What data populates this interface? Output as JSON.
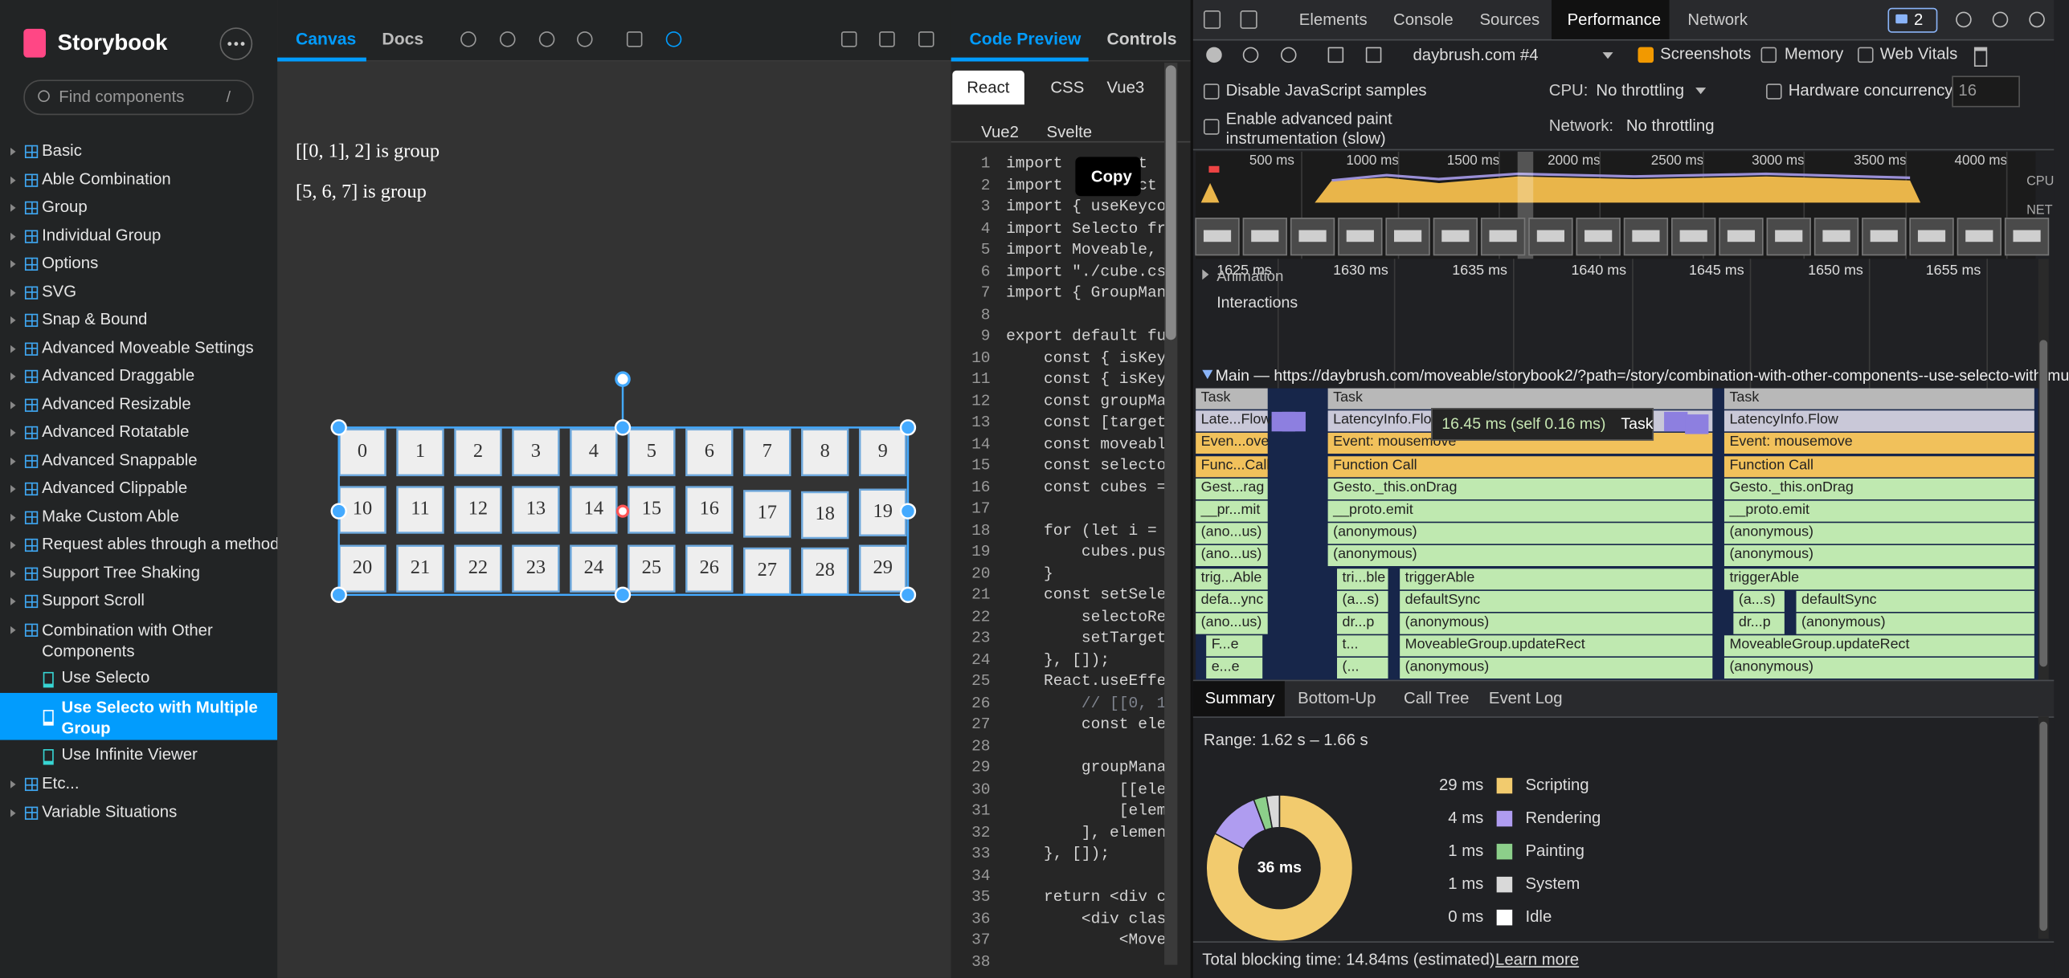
{
  "sidebar": {
    "title": "Storybook",
    "search_placeholder": "Find components",
    "search_shortcut": "/",
    "items": [
      "Basic",
      "Able Combination",
      "Group",
      "Individual Group",
      "Options",
      "SVG",
      "Snap & Bound",
      "Advanced Moveable Settings",
      "Advanced Draggable",
      "Advanced Resizable",
      "Advanced Rotatable",
      "Advanced Snappable",
      "Advanced Clippable",
      "Make Custom Able",
      "Request ables through a method",
      "Support Tree Shaking",
      "Support Scroll"
    ],
    "group": "Combination with Other Components",
    "children": [
      "Use Selecto",
      "Use Selecto with Multiple Group",
      "Use Infinite Viewer"
    ],
    "selected_child": 1,
    "items_after": [
      "Etc...",
      "Variable Situations"
    ]
  },
  "canvas": {
    "tabs": [
      "Canvas",
      "Docs"
    ],
    "active_tab": 0,
    "lines": [
      "[[0, 1], 2] is group",
      "[5, 6, 7] is group"
    ],
    "cubes": [
      0,
      1,
      2,
      3,
      4,
      5,
      6,
      7,
      8,
      9,
      10,
      11,
      12,
      13,
      14,
      15,
      16,
      17,
      18,
      19,
      20,
      21,
      22,
      23,
      24,
      25,
      26,
      27,
      28,
      29
    ]
  },
  "code": {
    "tabs": [
      "Code Preview",
      "Controls"
    ],
    "frameworks": [
      "React",
      "CSS",
      "Vue3",
      "Vue2",
      "Svelte"
    ],
    "active_framework": 0,
    "copy": "Copy",
    "lines": [
      {
        "n": 1,
        "text": "import       at"
      },
      {
        "n": 2,
        "text": "import       act"
      },
      {
        "n": 3,
        "text": "import { useKeyco"
      },
      {
        "n": 4,
        "text": "import Selecto fr"
      },
      {
        "n": 5,
        "text": "import Moveable,"
      },
      {
        "n": 6,
        "text": "import \"./cube.cs"
      },
      {
        "n": 7,
        "text": "import { GroupMan"
      },
      {
        "n": 8
      },
      {
        "n": 9,
        "text": "export default fu"
      },
      {
        "n": 10,
        "text": "    const { isKey"
      },
      {
        "n": 11,
        "text": "    const { isKey"
      },
      {
        "n": 12,
        "text": "    const groupMa"
      },
      {
        "n": 13,
        "text": "    const [target"
      },
      {
        "n": 14,
        "text": "    const moveabl"
      },
      {
        "n": 15,
        "text": "    const selecto"
      },
      {
        "n": 16,
        "text": "    const cubes ="
      },
      {
        "n": 17
      },
      {
        "n": 18,
        "text": "    for (let i ="
      },
      {
        "n": 19,
        "text": "        cubes.pus"
      },
      {
        "n": 20,
        "text": "    }"
      },
      {
        "n": 21,
        "text": "    const setSele"
      },
      {
        "n": 22,
        "text": "        selectoRe"
      },
      {
        "n": 23,
        "text": "        setTarget"
      },
      {
        "n": 24,
        "text": "    }, []);"
      },
      {
        "n": 25,
        "text": "    React.useEffe"
      },
      {
        "n": 26,
        "text": "        // [[0, 1"
      },
      {
        "n": 27,
        "text": "        const ele"
      },
      {
        "n": 28
      },
      {
        "n": 29,
        "text": "        groupMana"
      },
      {
        "n": 30,
        "text": "            [[ele"
      },
      {
        "n": 31,
        "text": "            [elem"
      },
      {
        "n": 32,
        "text": "        ], elemen"
      },
      {
        "n": 33,
        "text": "    }, []);"
      },
      {
        "n": 34
      },
      {
        "n": 35,
        "text": "    return <div c"
      },
      {
        "n": 36,
        "text": "        <div clas"
      },
      {
        "n": 37,
        "text": "            <Move"
      },
      {
        "n": 38
      }
    ]
  },
  "devtools": {
    "tabs": [
      "Elements",
      "Console",
      "Sources",
      "Performance",
      "Network"
    ],
    "active_tab": 3,
    "issues": 2,
    "profile": "daybrush.com #4",
    "checkboxes": [
      {
        "label": "Screenshots",
        "checked": true
      },
      {
        "label": "Memory",
        "checked": false
      },
      {
        "label": "Web Vitals",
        "checked": false
      },
      {
        "label": "Disable JavaScript samples",
        "checked": false
      },
      {
        "label": "Hardware concurrency",
        "checked": false
      },
      {
        "label": "Enable advanced paint instrumentation (slow)",
        "checked": false
      }
    ],
    "cpu_label": "CPU:",
    "cpu_value": "No throttling",
    "network_label": "Network:",
    "network_value": "No throttling",
    "concurrency": 16,
    "overview_ticks": [
      "500 ms",
      "1000 ms",
      "1500 ms",
      "2000 ms",
      "2500 ms",
      "3000 ms",
      "3500 ms",
      "4000 ms"
    ],
    "overview_side": [
      "CPU",
      "NET"
    ],
    "detail_ticks": [
      "1625 ms",
      "1630 ms",
      "1635 ms",
      "1640 ms",
      "1645 ms",
      "1650 ms",
      "1655 ms"
    ],
    "tracks": [
      "Animation",
      "Interactions"
    ],
    "main_label": "Main — https://daybrush.com/moveable/storybook2/?path=/story/combination-with-other-components--use-selecto-with-mu",
    "flame": [
      [
        [
          "Task"
        ],
        [
          "Late...Flow"
        ],
        [
          "Even...ove"
        ],
        [
          "Func...Call"
        ],
        [
          "Gest...rag"
        ],
        [
          "__pr...mit"
        ],
        [
          "(ano...us)"
        ],
        [
          "(ano...us)"
        ],
        [
          "trig...Able"
        ],
        [
          "defa...ync"
        ],
        [
          "(ano...us)"
        ],
        [
          "F...e"
        ],
        [
          "e...e"
        ]
      ],
      [
        [
          "Task"
        ],
        [
          "LatencyInfo.Flow"
        ],
        [
          "Event: mousemove"
        ],
        [
          "Function Call"
        ],
        [
          "Gesto._this.onDrag"
        ],
        [
          "__proto.emit"
        ],
        [
          "(anonymous)"
        ],
        [
          "(anonymous)"
        ],
        [
          "tri...ble",
          "triggerAble"
        ],
        [
          "(a...s)",
          "defaultSync"
        ],
        [
          "dr...p",
          "(anonymous)"
        ],
        [
          "t...",
          "MoveableGroup.updateRect"
        ],
        [
          "(...",
          "(anonymous)"
        ]
      ],
      [
        [
          "Task"
        ],
        [
          "LatencyInfo.Flow"
        ],
        [
          "Event: mousemove"
        ],
        [
          "Function Call"
        ],
        [
          "Gesto._this.onDrag"
        ],
        [
          "__proto.emit"
        ],
        [
          "(anonymous)"
        ],
        [
          "(anonymous)"
        ],
        [
          "triggerAble"
        ],
        [
          "(a...s)",
          "defaultSync"
        ],
        [
          "dr...p",
          "(anonymous)"
        ],
        [
          "MoveableGroup.updateRect"
        ],
        [
          "(anonymous)"
        ]
      ]
    ],
    "tooltip": {
      "time": "16.45 ms (self 0.16 ms)",
      "name": "Task"
    },
    "bottom_tabs": [
      "Summary",
      "Bottom-Up",
      "Call Tree",
      "Event Log"
    ],
    "range": "Range: 1.62 s – 1.66 s",
    "summary": {
      "total_label": "36 ms",
      "values": [
        29,
        4,
        1,
        1,
        0
      ],
      "value_labels": [
        "29 ms",
        "4 ms",
        "1 ms",
        "1 ms",
        "0 ms"
      ],
      "names": [
        "Scripting",
        "Rendering",
        "Painting",
        "System",
        "Idle"
      ],
      "colors": [
        "#f2cb6e",
        "#af9cf0",
        "#8ccf8a",
        "#d9d9d9",
        "#ffffff"
      ]
    },
    "blocking": "Total blocking time: 14.84ms (estimated)",
    "learn_more": "Learn more"
  }
}
